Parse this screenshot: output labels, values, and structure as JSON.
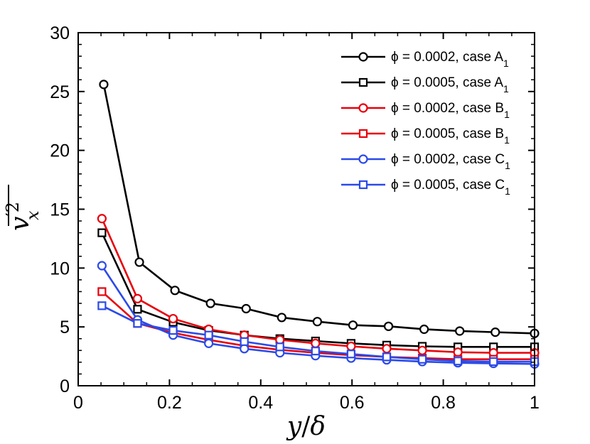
{
  "chart_data": {
    "type": "line",
    "title": "",
    "xlabel": "y/δ",
    "ylabel": "v′x²",
    "ylabel_parts": {
      "base": "v",
      "prime": "′",
      "sup": "2",
      "sub": "x"
    },
    "xlabel_parts": {
      "var": "y",
      "slash": "/",
      "denom": "δ"
    },
    "xlim": [
      0,
      1
    ],
    "ylim": [
      0,
      30
    ],
    "xticks": [
      0,
      0.2,
      0.4,
      0.6,
      0.8,
      1
    ],
    "xtick_labels": [
      "0",
      "0.2",
      "0.4",
      "0.6",
      "0.8",
      "1"
    ],
    "yticks": [
      0,
      5,
      10,
      15,
      20,
      25,
      30
    ],
    "ytick_labels": [
      "0",
      "5",
      "10",
      "15",
      "20",
      "25",
      "30"
    ],
    "legend_position": "top-right",
    "grid": false,
    "series": [
      {
        "name": "ϕ = 0.0002, case A",
        "subscript": "1",
        "color": "#000000",
        "marker": "circle",
        "x": [
          0.056,
          0.134,
          0.212,
          0.29,
          0.368,
          0.446,
          0.524,
          0.602,
          0.68,
          0.758,
          0.836,
          0.914,
          1.0
        ],
        "y": [
          25.6,
          10.5,
          8.1,
          7.0,
          6.55,
          5.8,
          5.45,
          5.15,
          5.05,
          4.8,
          4.65,
          4.55,
          4.45
        ]
      },
      {
        "name": "ϕ = 0.0005, case A",
        "subscript": "1",
        "color": "#000000",
        "marker": "square",
        "x": [
          0.052,
          0.13,
          0.208,
          0.286,
          0.364,
          0.442,
          0.52,
          0.598,
          0.676,
          0.754,
          0.832,
          0.91,
          1.0
        ],
        "y": [
          13.0,
          6.5,
          5.4,
          4.7,
          4.3,
          4.0,
          3.8,
          3.6,
          3.45,
          3.35,
          3.3,
          3.3,
          3.3
        ]
      },
      {
        "name": "ϕ = 0.0002, case B",
        "subscript": "1",
        "color": "#e8000b",
        "marker": "circle",
        "x": [
          0.052,
          0.13,
          0.208,
          0.286,
          0.364,
          0.442,
          0.52,
          0.598,
          0.676,
          0.754,
          0.832,
          0.91,
          1.0
        ],
        "y": [
          14.2,
          7.4,
          5.7,
          4.8,
          4.3,
          3.9,
          3.6,
          3.35,
          3.15,
          3.0,
          2.85,
          2.8,
          2.8
        ]
      },
      {
        "name": "ϕ = 0.0005, case B",
        "subscript": "1",
        "color": "#e8000b",
        "marker": "square",
        "x": [
          0.052,
          0.13,
          0.208,
          0.286,
          0.364,
          0.442,
          0.52,
          0.598,
          0.676,
          0.754,
          0.832,
          0.91,
          1.0
        ],
        "y": [
          8.0,
          5.3,
          4.5,
          3.9,
          3.4,
          3.05,
          2.8,
          2.6,
          2.45,
          2.35,
          2.25,
          2.25,
          2.25
        ]
      },
      {
        "name": "ϕ = 0.0002, case C",
        "subscript": "1",
        "color": "#2b4ae8",
        "marker": "circle",
        "x": [
          0.052,
          0.13,
          0.208,
          0.286,
          0.364,
          0.442,
          0.52,
          0.598,
          0.676,
          0.754,
          0.832,
          0.91,
          1.0
        ],
        "y": [
          10.2,
          5.6,
          4.3,
          3.6,
          3.15,
          2.8,
          2.55,
          2.35,
          2.2,
          2.05,
          1.95,
          1.9,
          1.85
        ]
      },
      {
        "name": "ϕ = 0.0005, case C",
        "subscript": "1",
        "color": "#2b4ae8",
        "marker": "square",
        "x": [
          0.052,
          0.13,
          0.208,
          0.286,
          0.364,
          0.442,
          0.52,
          0.598,
          0.676,
          0.754,
          0.832,
          0.91,
          1.0
        ],
        "y": [
          6.8,
          5.3,
          4.7,
          4.3,
          3.75,
          3.3,
          2.95,
          2.7,
          2.45,
          2.25,
          2.1,
          2.05,
          2.05
        ]
      }
    ]
  }
}
